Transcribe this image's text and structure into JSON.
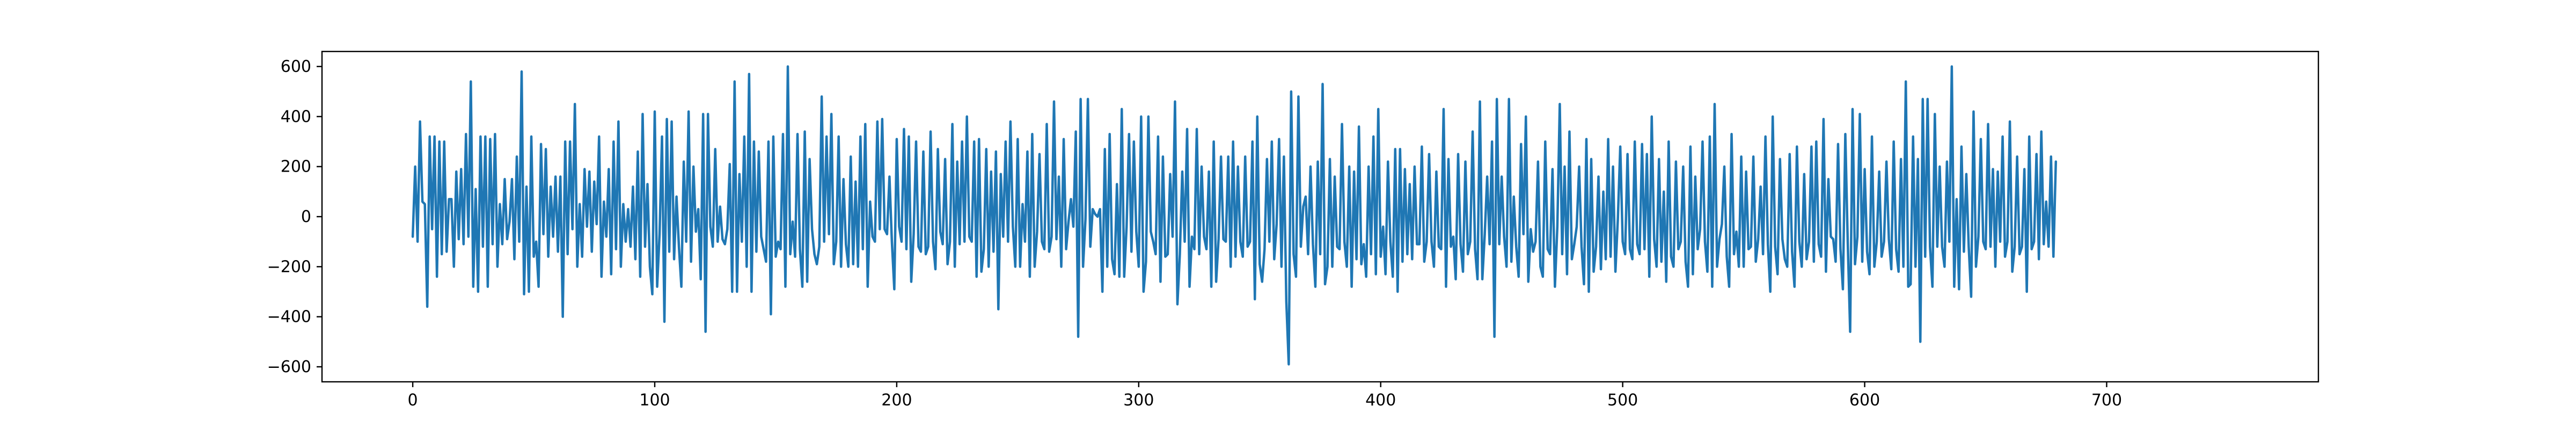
{
  "chart_data": {
    "type": "line",
    "title": "",
    "xlabel": "",
    "ylabel": "",
    "xlim": [
      -37.5,
      787.5
    ],
    "ylim": [
      -660,
      660
    ],
    "x_ticks": [
      0,
      100,
      200,
      300,
      400,
      500,
      600,
      700
    ],
    "y_ticks": [
      -600,
      -400,
      -200,
      0,
      200,
      400,
      600
    ],
    "grid": false,
    "legend": "none",
    "series": [
      {
        "color": "#1f77b4",
        "x_start": 0,
        "x_step": 1,
        "values": [
          -80,
          200,
          -100,
          380,
          60,
          50,
          -360,
          320,
          -50,
          320,
          -240,
          300,
          -150,
          300,
          -140,
          70,
          70,
          -200,
          180,
          -90,
          190,
          -110,
          330,
          -80,
          540,
          -280,
          110,
          -300,
          320,
          -120,
          320,
          -280,
          310,
          -110,
          330,
          -200,
          50,
          -110,
          150,
          -90,
          -20,
          150,
          -170,
          240,
          -100,
          580,
          -310,
          120,
          -300,
          320,
          -160,
          -100,
          -280,
          290,
          -70,
          270,
          -160,
          120,
          -80,
          160,
          -140,
          160,
          -400,
          300,
          -150,
          300,
          -50,
          450,
          -200,
          50,
          -160,
          190,
          -40,
          180,
          -140,
          140,
          -30,
          320,
          -240,
          60,
          -80,
          190,
          -230,
          300,
          -130,
          380,
          -200,
          50,
          -100,
          30,
          -120,
          120,
          -170,
          260,
          -240,
          410,
          -120,
          130,
          -200,
          -310,
          420,
          -280,
          -70,
          320,
          -420,
          390,
          -140,
          380,
          -170,
          80,
          -120,
          -280,
          220,
          -100,
          420,
          -180,
          200,
          -60,
          30,
          -250,
          410,
          -460,
          410,
          -40,
          -120,
          270,
          -100,
          40,
          -90,
          -110,
          -50,
          210,
          -300,
          540,
          -300,
          170,
          -100,
          320,
          -200,
          570,
          -300,
          300,
          -140,
          260,
          -80,
          -130,
          -180,
          300,
          -390,
          320,
          -160,
          -100,
          -130,
          330,
          -280,
          600,
          -150,
          -20,
          -160,
          330,
          -130,
          -280,
          340,
          -260,
          230,
          -50,
          -150,
          -190,
          -120,
          480,
          -100,
          320,
          -70,
          410,
          -190,
          -100,
          320,
          -200,
          150,
          -110,
          -200,
          240,
          -190,
          140,
          -200,
          320,
          -130,
          370,
          -280,
          60,
          -80,
          -100,
          380,
          -50,
          390,
          -50,
          -70,
          160,
          -100,
          -290,
          310,
          -40,
          -100,
          350,
          -130,
          320,
          -260,
          -70,
          300,
          -120,
          -140,
          260,
          -150,
          -120,
          340,
          -100,
          -210,
          270,
          -60,
          -110,
          230,
          -190,
          -100,
          370,
          -200,
          220,
          -110,
          300,
          -100,
          400,
          -80,
          -100,
          300,
          -240,
          310,
          -220,
          -130,
          270,
          -200,
          180,
          -140,
          260,
          -370,
          170,
          -80,
          300,
          -100,
          380,
          -40,
          -200,
          310,
          -200,
          50,
          -100,
          260,
          -240,
          330,
          -200,
          -60,
          250,
          -100,
          -130,
          370,
          -140,
          -80,
          460,
          -90,
          160,
          -200,
          310,
          -130,
          -20,
          70,
          -40,
          340,
          -480,
          470,
          -200,
          -10,
          470,
          -120,
          30,
          10,
          0,
          30,
          -300,
          270,
          -200,
          330,
          -170,
          -230,
          130,
          -240,
          430,
          -240,
          -40,
          330,
          -140,
          300,
          -60,
          -200,
          400,
          -300,
          -180,
          400,
          -60,
          -100,
          -150,
          320,
          -260,
          240,
          -160,
          -150,
          170,
          -80,
          460,
          -350,
          -150,
          180,
          -100,
          350,
          -280,
          -80,
          -130,
          350,
          -150,
          200,
          -80,
          -130,
          180,
          -280,
          300,
          -260,
          -90,
          240,
          -90,
          -100,
          240,
          -200,
          300,
          -160,
          200,
          -100,
          -160,
          240,
          -120,
          -100,
          300,
          -330,
          400,
          -190,
          -260,
          -130,
          230,
          -100,
          300,
          -170,
          -30,
          310,
          -200,
          240,
          -340,
          -590,
          500,
          -150,
          -240,
          480,
          -120,
          40,
          80,
          -150,
          200,
          -110,
          -280,
          220,
          -150,
          530,
          -270,
          -200,
          230,
          -200,
          160,
          -120,
          -130,
          370,
          -100,
          -200,
          200,
          -280,
          180,
          -170,
          360,
          -190,
          -110,
          -240,
          200,
          -150,
          320,
          -230,
          430,
          -160,
          -40,
          -230,
          220,
          -100,
          -240,
          270,
          -300,
          270,
          -180,
          190,
          -150,
          130,
          -170,
          200,
          -110,
          -110,
          280,
          -180,
          -100,
          250,
          -100,
          -200,
          180,
          -120,
          -130,
          430,
          -280,
          230,
          -120,
          -80,
          -250,
          250,
          -110,
          -220,
          220,
          -150,
          -100,
          340,
          -130,
          -250,
          460,
          -250,
          -70,
          160,
          -110,
          300,
          -480,
          470,
          -110,
          160,
          -80,
          -200,
          470,
          -180,
          80,
          -120,
          -240,
          290,
          -70,
          400,
          -260,
          -50,
          -140,
          -100,
          220,
          -200,
          -240,
          300,
          -130,
          -150,
          190,
          -280,
          -40,
          450,
          -150,
          200,
          -230,
          340,
          -170,
          -110,
          -40,
          200,
          -120,
          -270,
          310,
          -300,
          230,
          -220,
          -120,
          160,
          -210,
          100,
          -170,
          310,
          -160,
          200,
          -220,
          -10,
          280,
          -100,
          -150,
          250,
          -130,
          -170,
          300,
          -110,
          -150,
          290,
          -130,
          250,
          -240,
          400,
          -90,
          -200,
          230,
          -180,
          100,
          -260,
          300,
          -160,
          -200,
          220,
          -130,
          -100,
          200,
          -180,
          -280,
          280,
          -230,
          160,
          -130,
          -50,
          300,
          -100,
          -220,
          320,
          -280,
          450,
          -200,
          -90,
          -30,
          200,
          -160,
          -280,
          330,
          -150,
          -60,
          -200,
          240,
          -200,
          180,
          -130,
          -120,
          240,
          -180,
          -90,
          120,
          -150,
          320,
          -110,
          -300,
          400,
          -120,
          -230,
          230,
          -90,
          -170,
          -200,
          250,
          -140,
          -280,
          280,
          -100,
          -200,
          170,
          -170,
          -100,
          280,
          -180,
          300,
          -110,
          -160,
          390,
          -220,
          150,
          -80,
          -90,
          -180,
          290,
          -130,
          -290,
          330,
          -100,
          -460,
          430,
          -190,
          -80,
          410,
          -180,
          190,
          -140,
          -230,
          320,
          -200,
          -100,
          180,
          -160,
          -100,
          220,
          -90,
          -210,
          300,
          -130,
          -220,
          230,
          -200,
          540,
          -280,
          -270,
          320,
          -200,
          230,
          -500,
          470,
          -160,
          470,
          -120,
          -280,
          410,
          -120,
          200,
          -120,
          -200,
          220,
          -100,
          600,
          -280,
          70,
          -290,
          280,
          -140,
          170,
          -120,
          -320,
          420,
          -200,
          -80,
          310,
          -100,
          -130,
          370,
          -120,
          190,
          -200,
          180,
          -100,
          320,
          -160,
          -100,
          380,
          -220,
          -120,
          240,
          -150,
          -120,
          190,
          -300,
          320,
          -130,
          -100,
          250,
          -170,
          340,
          -110,
          60,
          -120,
          240,
          -160,
          220
        ]
      }
    ]
  }
}
